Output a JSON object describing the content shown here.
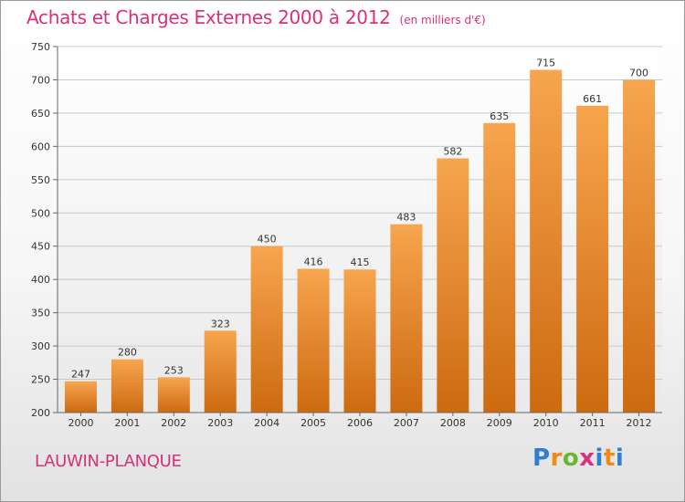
{
  "header": {
    "title": "Achats et Charges Externes 2000 à 2012",
    "unit": "(en milliers d'€)"
  },
  "footer": {
    "commune": "LAUWIN-PLANQUE",
    "logo_text": "Proxiti"
  },
  "colors": {
    "accent": "#d6317b",
    "bar_top": "#f7a54f",
    "bar_bottom": "#cd6a10"
  },
  "chart_data": {
    "type": "bar",
    "title": "Achats et Charges Externes 2000 à 2012",
    "subtitle": "(en milliers d'€)",
    "categories": [
      "2000",
      "2001",
      "2002",
      "2003",
      "2004",
      "2005",
      "2006",
      "2007",
      "2008",
      "2009",
      "2010",
      "2011",
      "2012"
    ],
    "values": [
      247,
      280,
      253,
      323,
      450,
      416,
      415,
      483,
      582,
      635,
      715,
      661,
      700
    ],
    "ylim": [
      200,
      750
    ],
    "yticks": [
      200,
      250,
      300,
      350,
      400,
      450,
      500,
      550,
      600,
      650,
      700,
      750
    ],
    "grid": true,
    "data_labels": true
  }
}
